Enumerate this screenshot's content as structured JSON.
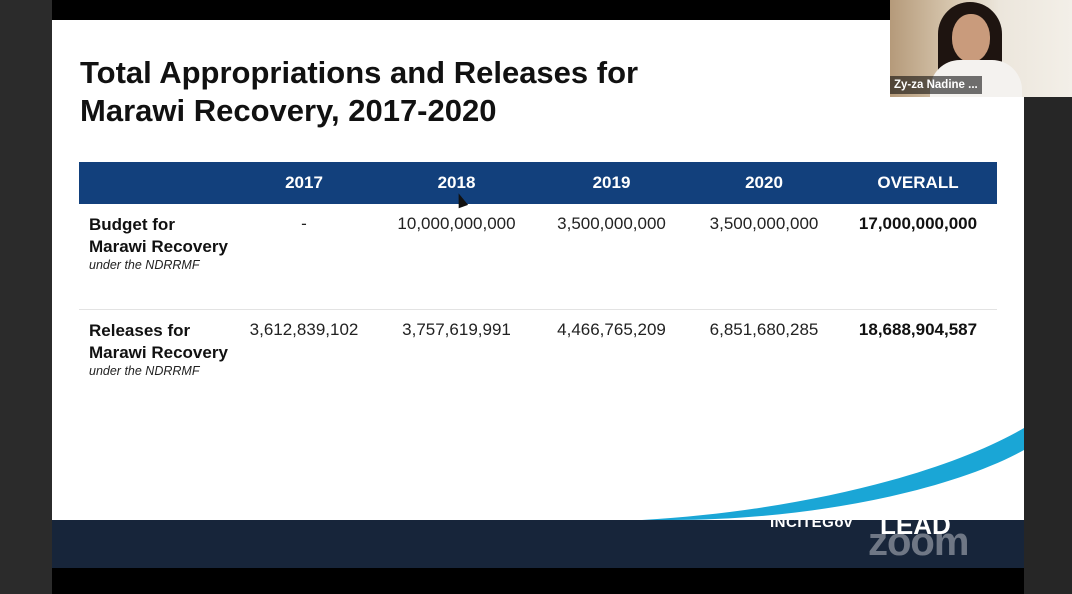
{
  "slide": {
    "title_line1": "Total Appropriations and Releases for",
    "title_line2": "Marawi Recovery, 2017-2020"
  },
  "table": {
    "headers": [
      "",
      "2017",
      "2018",
      "2019",
      "2020",
      "OVERALL"
    ],
    "rows": [
      {
        "label": "Budget for Marawi Recovery",
        "sublabel": "under the NDRRMF",
        "values": [
          "-",
          "10,000,000,000",
          "3,500,000,000",
          "3,500,000,000"
        ],
        "overall": "17,000,000,000"
      },
      {
        "label": "Releases for Marawi Recovery",
        "sublabel": "under the NDRRMF",
        "values": [
          "3,612,839,102",
          "3,757,619,991",
          "4,466,765,209",
          "6,851,680,285"
        ],
        "overall": "18,688,904,587"
      }
    ]
  },
  "participant": {
    "name": "Zy-za Nadine ..."
  },
  "footer": {
    "brand_left": "INCITEGov",
    "brand_right": "LEAD",
    "watermark": "zoom"
  },
  "colors": {
    "header_bg": "#12407c",
    "footer_bg": "#17253a",
    "accent_swoosh": "#1aa6d6"
  }
}
